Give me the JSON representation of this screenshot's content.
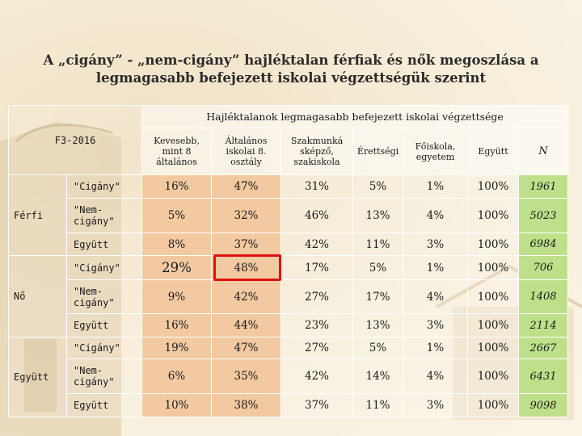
{
  "title": {
    "line1": "A „cigány” - „nem-cigány” hajléktalan férfiak és nők megoszlása a",
    "line2": "legmagasabb befejezett iskolai végzettségük szerint"
  },
  "table": {
    "super_header": "Hajléktalanok legmagasabb befejezett iskolai végzettsége",
    "corner_label": "F3-2016",
    "columns": [
      "Kevesebb, mint 8 általános",
      "Általános iskolai 8. osztály",
      "Szakmunká sképző, szakiskola",
      "Érettségi",
      "Főiskola, egyetem",
      "Együtt",
      "N"
    ],
    "groups": [
      {
        "label": "Férfi",
        "rows": [
          {
            "label": "\"Cigány\"",
            "values": [
              "16%",
              "47%",
              "31%",
              "5%",
              "1%",
              "100%",
              "1961"
            ]
          },
          {
            "label": "\"Nem-cigány\"",
            "values": [
              "5%",
              "32%",
              "46%",
              "13%",
              "4%",
              "100%",
              "5023"
            ]
          },
          {
            "label": "Együtt",
            "values": [
              "8%",
              "37%",
              "42%",
              "11%",
              "3%",
              "100%",
              "6984"
            ]
          }
        ]
      },
      {
        "label": "Nő",
        "rows": [
          {
            "label": "\"Cigány\"",
            "values": [
              "29%",
              "48%",
              "17%",
              "5%",
              "1%",
              "100%",
              "706"
            ]
          },
          {
            "label": "\"Nem-cigány\"",
            "values": [
              "9%",
              "42%",
              "27%",
              "17%",
              "4%",
              "100%",
              "1408"
            ]
          },
          {
            "label": "Együtt",
            "values": [
              "16%",
              "44%",
              "23%",
              "13%",
              "3%",
              "100%",
              "2114"
            ]
          }
        ]
      },
      {
        "label": "Együtt",
        "rows": [
          {
            "label": "\"Cigány\"",
            "values": [
              "19%",
              "47%",
              "27%",
              "5%",
              "1%",
              "100%",
              "2667"
            ]
          },
          {
            "label": "\"Nem-cigány\"",
            "values": [
              "6%",
              "35%",
              "42%",
              "14%",
              "4%",
              "100%",
              "6431"
            ]
          },
          {
            "label": "Együtt",
            "values": [
              "10%",
              "38%",
              "37%",
              "11%",
              "3%",
              "100%",
              "9098"
            ]
          }
        ]
      }
    ]
  },
  "colors": {
    "highlight_cells": "#f2c9a0",
    "n_column": "#bfe08a",
    "annotation_box": "#e01010"
  }
}
